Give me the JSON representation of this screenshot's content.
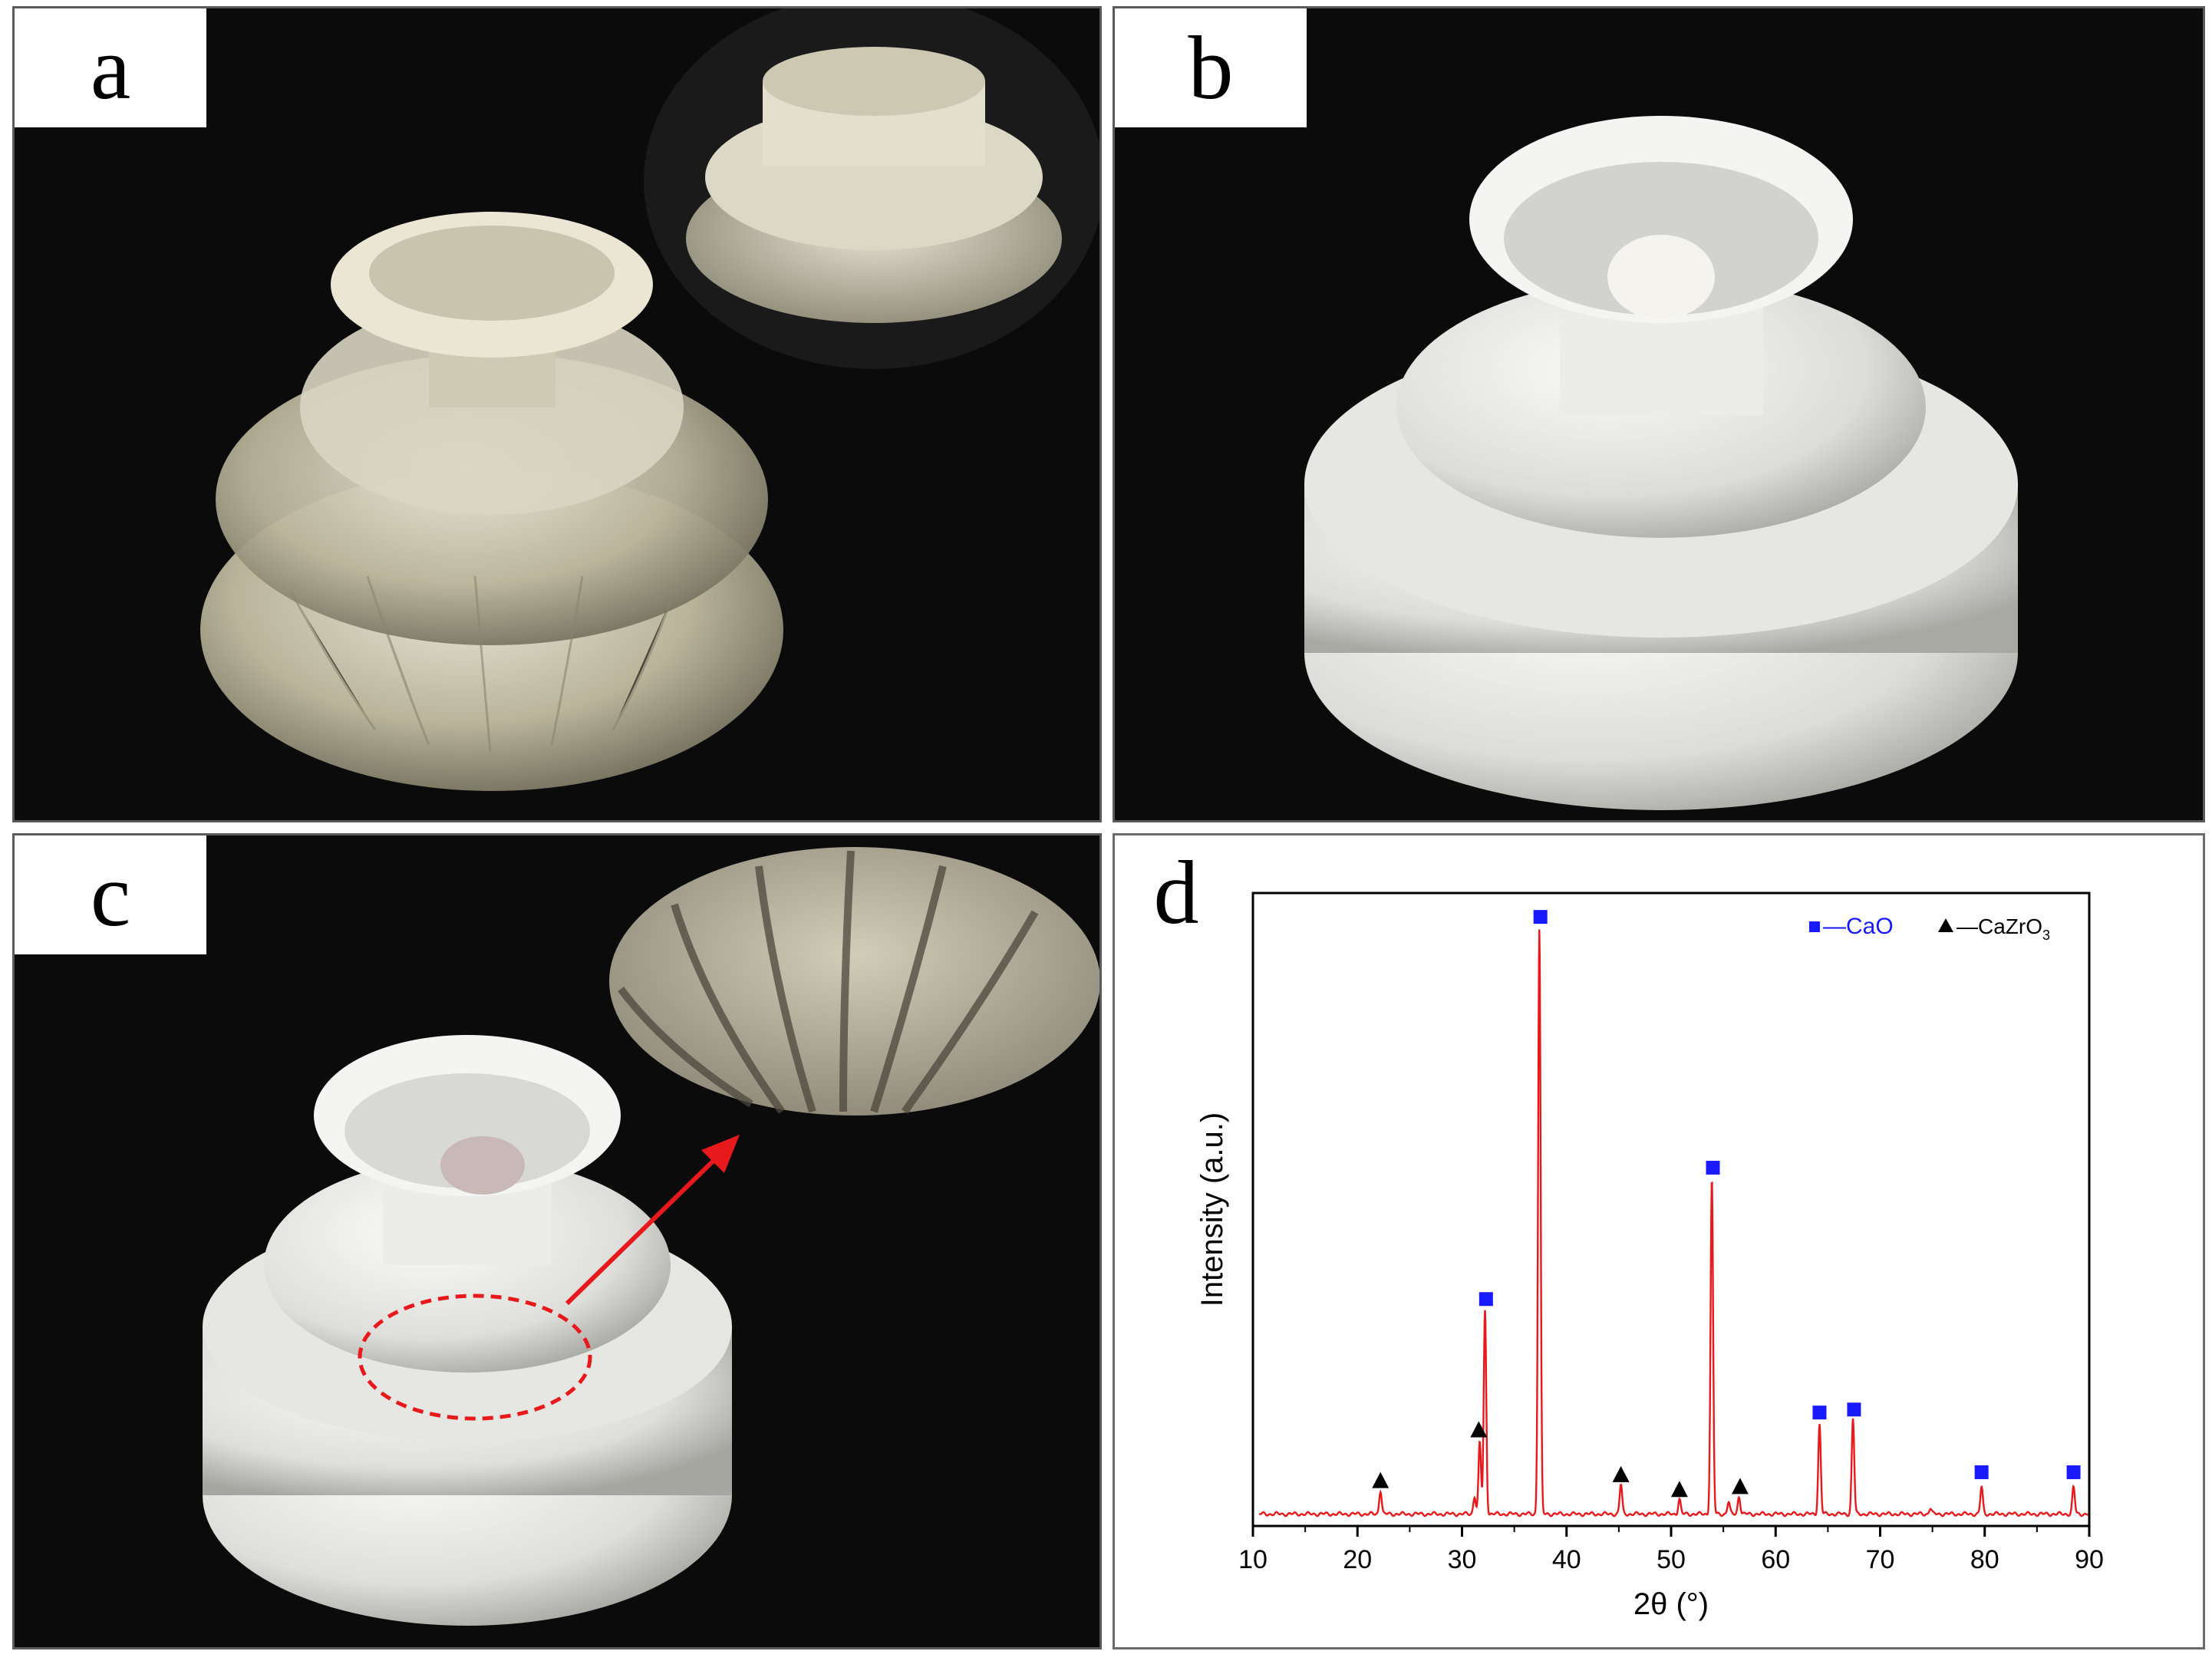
{
  "panels": {
    "a": {
      "label": "a"
    },
    "b": {
      "label": "b"
    },
    "c": {
      "label": "c"
    },
    "d": {
      "label": "d"
    }
  },
  "chart_data": {
    "type": "line",
    "xlabel": "2θ (°)",
    "ylabel": "Intensity (a.u.)",
    "xlim": [
      10,
      90
    ],
    "xticks": [
      10,
      20,
      30,
      40,
      50,
      60,
      70,
      80,
      90
    ],
    "y_tick_labels": false,
    "grid": false,
    "line_color": "#e8191c",
    "legend": {
      "placement": "top-right",
      "items": [
        {
          "marker": "square",
          "text": "—CaO",
          "color": "#1a1aff"
        },
        {
          "marker": "triangle",
          "text": "—CaZrO",
          "subscript": "3",
          "color": "#000000"
        }
      ]
    },
    "baseline": 2.0,
    "peaks": [
      {
        "x": 22.2,
        "y": 6.0,
        "phase": "CaZrO3"
      },
      {
        "x": 31.2,
        "y": 5.0,
        "phase": ""
      },
      {
        "x": 31.7,
        "y": 14.0,
        "phase": "CaZrO3"
      },
      {
        "x": 32.2,
        "y": 36.0,
        "phase": "CaO"
      },
      {
        "x": 37.4,
        "y": 100.0,
        "phase": "CaO"
      },
      {
        "x": 45.2,
        "y": 7.0,
        "phase": "CaZrO3"
      },
      {
        "x": 50.8,
        "y": 4.5,
        "phase": "CaZrO3"
      },
      {
        "x": 53.9,
        "y": 58.0,
        "phase": "CaO"
      },
      {
        "x": 55.5,
        "y": 4.0,
        "phase": ""
      },
      {
        "x": 56.5,
        "y": 5.0,
        "phase": "CaZrO3"
      },
      {
        "x": 64.2,
        "y": 17.0,
        "phase": "CaO"
      },
      {
        "x": 67.4,
        "y": 18.0,
        "phase": "CaO"
      },
      {
        "x": 74.8,
        "y": 3.0,
        "phase": ""
      },
      {
        "x": 79.7,
        "y": 6.5,
        "phase": "CaO"
      },
      {
        "x": 88.5,
        "y": 6.5,
        "phase": "CaO"
      }
    ],
    "markers": [
      {
        "x": 22.2,
        "y": 7.5,
        "type": "triangle"
      },
      {
        "x": 31.6,
        "y": 16.0,
        "type": "triangle"
      },
      {
        "x": 32.3,
        "y": 38.0,
        "type": "square"
      },
      {
        "x": 37.5,
        "y": 102.0,
        "type": "square"
      },
      {
        "x": 45.2,
        "y": 8.5,
        "type": "triangle"
      },
      {
        "x": 50.8,
        "y": 6.0,
        "type": "triangle"
      },
      {
        "x": 54.0,
        "y": 60.0,
        "type": "square"
      },
      {
        "x": 56.6,
        "y": 6.5,
        "type": "triangle"
      },
      {
        "x": 64.2,
        "y": 19.0,
        "type": "square"
      },
      {
        "x": 67.5,
        "y": 19.5,
        "type": "square"
      },
      {
        "x": 79.7,
        "y": 9.0,
        "type": "square"
      },
      {
        "x": 88.5,
        "y": 9.0,
        "type": "square"
      }
    ],
    "ylim": [
      0,
      106
    ]
  }
}
